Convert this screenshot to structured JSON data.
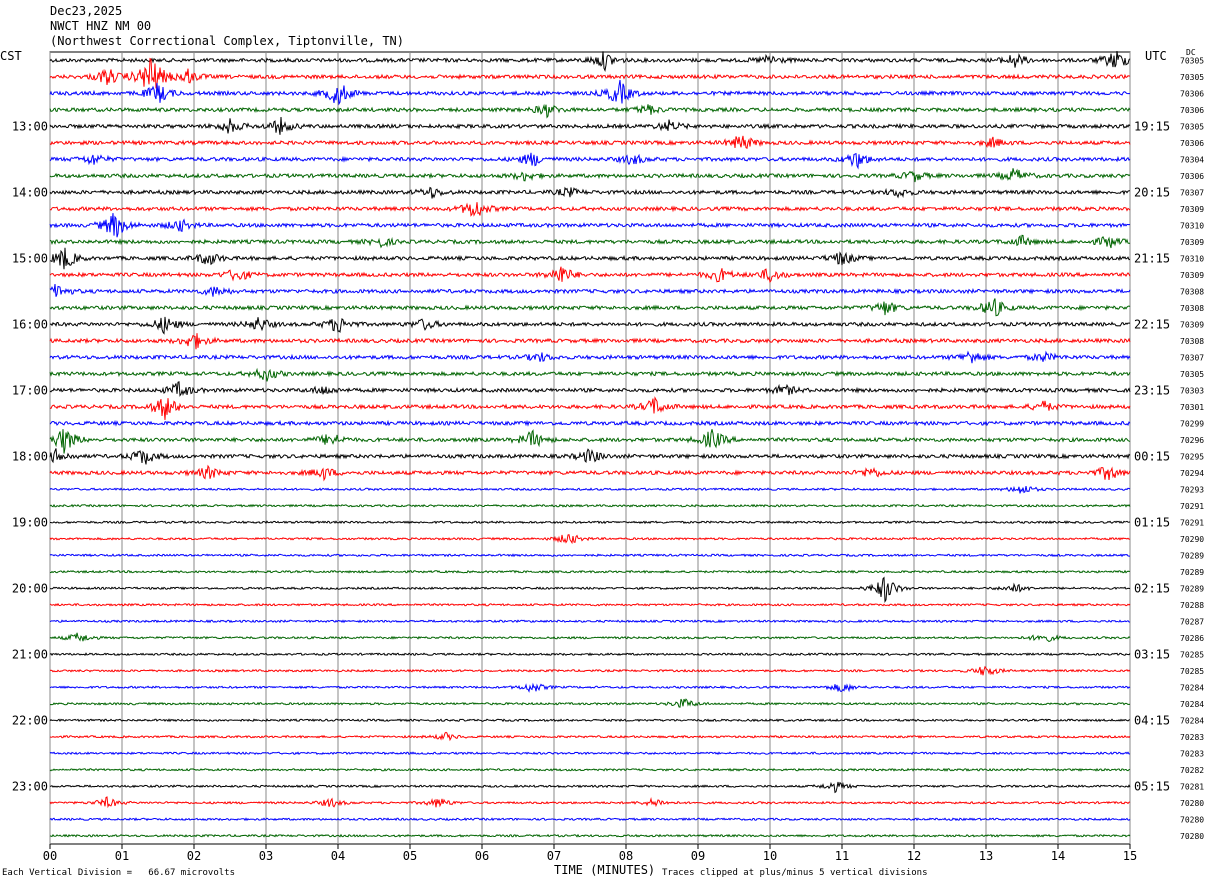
{
  "header": {
    "date": "Dec23,2025",
    "station": "NWCT HNZ NM 00",
    "location": "(Northwest Correctional Complex, Tiptonville, TN)"
  },
  "left_timezone": "CST",
  "right_timezone": "UTC",
  "dc_label": "DC",
  "footer": {
    "scale_note": "Each Vertical Division =   66.67 microvolts",
    "clip_note": "Traces clipped at plus/minus 5 vertical divisions"
  },
  "colors": {
    "trace_cycle": [
      "#000000",
      "#ff0000",
      "#0000ff",
      "#006400"
    ],
    "grid": "#888888"
  },
  "chart_data": {
    "type": "line",
    "title": "NWCT HNZ NM 00",
    "xlabel": "TIME (MINUTES)",
    "ylabel": "",
    "x_ticks": [
      "00",
      "01",
      "02",
      "03",
      "04",
      "05",
      "06",
      "07",
      "08",
      "09",
      "10",
      "11",
      "12",
      "13",
      "14",
      "15"
    ],
    "xlim": [
      0,
      15
    ],
    "left_hour_labels": [
      "13:00",
      "14:00",
      "15:00",
      "16:00",
      "17:00",
      "18:00",
      "19:00",
      "20:00",
      "21:00",
      "22:00",
      "23:00"
    ],
    "right_hour_labels": [
      "19:15",
      "20:15",
      "21:15",
      "22:15",
      "23:15",
      "00:15",
      "01:15",
      "02:15",
      "03:15",
      "04:15",
      "05:15"
    ],
    "dc_offsets": [
      "70305",
      "70305",
      "70306",
      "70306",
      "70305",
      "70306",
      "70304",
      "70306",
      "70307",
      "70309",
      "70310",
      "70309",
      "70310",
      "70309",
      "70308",
      "70308",
      "70309",
      "70308",
      "70307",
      "70305",
      "70303",
      "70301",
      "70299",
      "70296",
      "70295",
      "70294",
      "70293",
      "70291",
      "70291",
      "70290",
      "70289",
      "70289",
      "70289",
      "70288",
      "70287",
      "70286",
      "70285",
      "70285",
      "70284",
      "70284",
      "70284",
      "70283",
      "70283",
      "70282",
      "70281",
      "70280",
      "70280",
      "70280"
    ],
    "traces_count": 48,
    "events": [
      {
        "trace": 0,
        "minute": 7.7,
        "amp": 1.0
      },
      {
        "trace": 0,
        "minute": 10.0,
        "amp": 0.6
      },
      {
        "trace": 0,
        "minute": 13.4,
        "amp": 0.8
      },
      {
        "trace": 0,
        "minute": 14.8,
        "amp": 1.2
      },
      {
        "trace": 1,
        "minute": 0.8,
        "amp": 1.0
      },
      {
        "trace": 1,
        "minute": 1.4,
        "amp": 2.6
      },
      {
        "trace": 1,
        "minute": 1.9,
        "amp": 0.9
      },
      {
        "trace": 2,
        "minute": 1.5,
        "amp": 1.2
      },
      {
        "trace": 2,
        "minute": 4.0,
        "amp": 1.5
      },
      {
        "trace": 2,
        "minute": 7.9,
        "amp": 1.5
      },
      {
        "trace": 3,
        "minute": 6.9,
        "amp": 0.7
      },
      {
        "trace": 3,
        "minute": 8.3,
        "amp": 0.6
      },
      {
        "trace": 4,
        "minute": 2.5,
        "amp": 0.8
      },
      {
        "trace": 4,
        "minute": 3.2,
        "amp": 0.9
      },
      {
        "trace": 4,
        "minute": 8.6,
        "amp": 0.6
      },
      {
        "trace": 5,
        "minute": 9.6,
        "amp": 1.0
      },
      {
        "trace": 5,
        "minute": 13.1,
        "amp": 0.5
      },
      {
        "trace": 6,
        "minute": 0.6,
        "amp": 0.6
      },
      {
        "trace": 6,
        "minute": 6.7,
        "amp": 0.8
      },
      {
        "trace": 6,
        "minute": 8.1,
        "amp": 0.6
      },
      {
        "trace": 6,
        "minute": 11.2,
        "amp": 1.0
      },
      {
        "trace": 7,
        "minute": 6.6,
        "amp": 0.5
      },
      {
        "trace": 7,
        "minute": 12.0,
        "amp": 0.6
      },
      {
        "trace": 7,
        "minute": 13.4,
        "amp": 0.8
      },
      {
        "trace": 8,
        "minute": 5.3,
        "amp": 0.6
      },
      {
        "trace": 8,
        "minute": 7.2,
        "amp": 0.5
      },
      {
        "trace": 8,
        "minute": 11.8,
        "amp": 0.5
      },
      {
        "trace": 9,
        "minute": 5.9,
        "amp": 1.2
      },
      {
        "trace": 10,
        "minute": 0.9,
        "amp": 1.6
      },
      {
        "trace": 10,
        "minute": 1.8,
        "amp": 0.7
      },
      {
        "trace": 11,
        "minute": 4.6,
        "amp": 0.5
      },
      {
        "trace": 11,
        "minute": 13.5,
        "amp": 0.6
      },
      {
        "trace": 11,
        "minute": 14.7,
        "amp": 0.7
      },
      {
        "trace": 12,
        "minute": 0.2,
        "amp": 1.3
      },
      {
        "trace": 12,
        "minute": 2.2,
        "amp": 0.8
      },
      {
        "trace": 12,
        "minute": 11.0,
        "amp": 0.8
      },
      {
        "trace": 13,
        "minute": 2.6,
        "amp": 0.8
      },
      {
        "trace": 13,
        "minute": 7.1,
        "amp": 1.1
      },
      {
        "trace": 13,
        "minute": 9.3,
        "amp": 0.8
      },
      {
        "trace": 13,
        "minute": 10.0,
        "amp": 0.8
      },
      {
        "trace": 14,
        "minute": 0.1,
        "amp": 0.8
      },
      {
        "trace": 14,
        "minute": 2.3,
        "amp": 0.6
      },
      {
        "trace": 15,
        "minute": 11.6,
        "amp": 0.8
      },
      {
        "trace": 15,
        "minute": 13.1,
        "amp": 1.2
      },
      {
        "trace": 16,
        "minute": 1.6,
        "amp": 1.0
      },
      {
        "trace": 16,
        "minute": 2.9,
        "amp": 0.8
      },
      {
        "trace": 16,
        "minute": 4.0,
        "amp": 1.0
      },
      {
        "trace": 16,
        "minute": 5.2,
        "amp": 0.6
      },
      {
        "trace": 17,
        "minute": 2.0,
        "amp": 1.0
      },
      {
        "trace": 18,
        "minute": 6.8,
        "amp": 0.5
      },
      {
        "trace": 18,
        "minute": 12.8,
        "amp": 0.8
      },
      {
        "trace": 18,
        "minute": 13.8,
        "amp": 0.5
      },
      {
        "trace": 19,
        "minute": 3.0,
        "amp": 0.8
      },
      {
        "trace": 20,
        "minute": 1.8,
        "amp": 0.9
      },
      {
        "trace": 20,
        "minute": 3.8,
        "amp": 0.5
      },
      {
        "trace": 20,
        "minute": 10.2,
        "amp": 0.6
      },
      {
        "trace": 21,
        "minute": 1.6,
        "amp": 1.4
      },
      {
        "trace": 21,
        "minute": 8.4,
        "amp": 1.0
      },
      {
        "trace": 21,
        "minute": 13.8,
        "amp": 0.6
      },
      {
        "trace": 23,
        "minute": 0.2,
        "amp": 1.5
      },
      {
        "trace": 23,
        "minute": 3.9,
        "amp": 0.8
      },
      {
        "trace": 23,
        "minute": 6.7,
        "amp": 1.0
      },
      {
        "trace": 23,
        "minute": 9.2,
        "amp": 1.2
      },
      {
        "trace": 24,
        "minute": 1.3,
        "amp": 1.0
      },
      {
        "trace": 24,
        "minute": 7.5,
        "amp": 0.8
      },
      {
        "trace": 24,
        "minute": 0.1,
        "amp": 0.8
      },
      {
        "trace": 25,
        "minute": 2.2,
        "amp": 0.7
      },
      {
        "trace": 25,
        "minute": 3.8,
        "amp": 0.7
      },
      {
        "trace": 25,
        "minute": 11.4,
        "amp": 0.6
      },
      {
        "trace": 25,
        "minute": 14.7,
        "amp": 0.9
      },
      {
        "trace": 26,
        "minute": 13.5,
        "amp": 0.6
      },
      {
        "trace": 29,
        "minute": 7.2,
        "amp": 0.7
      },
      {
        "trace": 32,
        "minute": 11.6,
        "amp": 1.6
      },
      {
        "trace": 32,
        "minute": 13.4,
        "amp": 0.5
      },
      {
        "trace": 35,
        "minute": 0.4,
        "amp": 0.6
      },
      {
        "trace": 35,
        "minute": 13.8,
        "amp": 0.6
      },
      {
        "trace": 37,
        "minute": 13.0,
        "amp": 0.7
      },
      {
        "trace": 38,
        "minute": 6.7,
        "amp": 0.6
      },
      {
        "trace": 38,
        "minute": 11.0,
        "amp": 0.6
      },
      {
        "trace": 39,
        "minute": 8.8,
        "amp": 0.6
      },
      {
        "trace": 41,
        "minute": 5.5,
        "amp": 0.4
      },
      {
        "trace": 44,
        "minute": 10.9,
        "amp": 0.6
      },
      {
        "trace": 45,
        "minute": 0.8,
        "amp": 0.6
      },
      {
        "trace": 45,
        "minute": 3.9,
        "amp": 0.5
      },
      {
        "trace": 45,
        "minute": 5.4,
        "amp": 0.6
      },
      {
        "trace": 45,
        "minute": 8.4,
        "amp": 0.5
      }
    ]
  }
}
